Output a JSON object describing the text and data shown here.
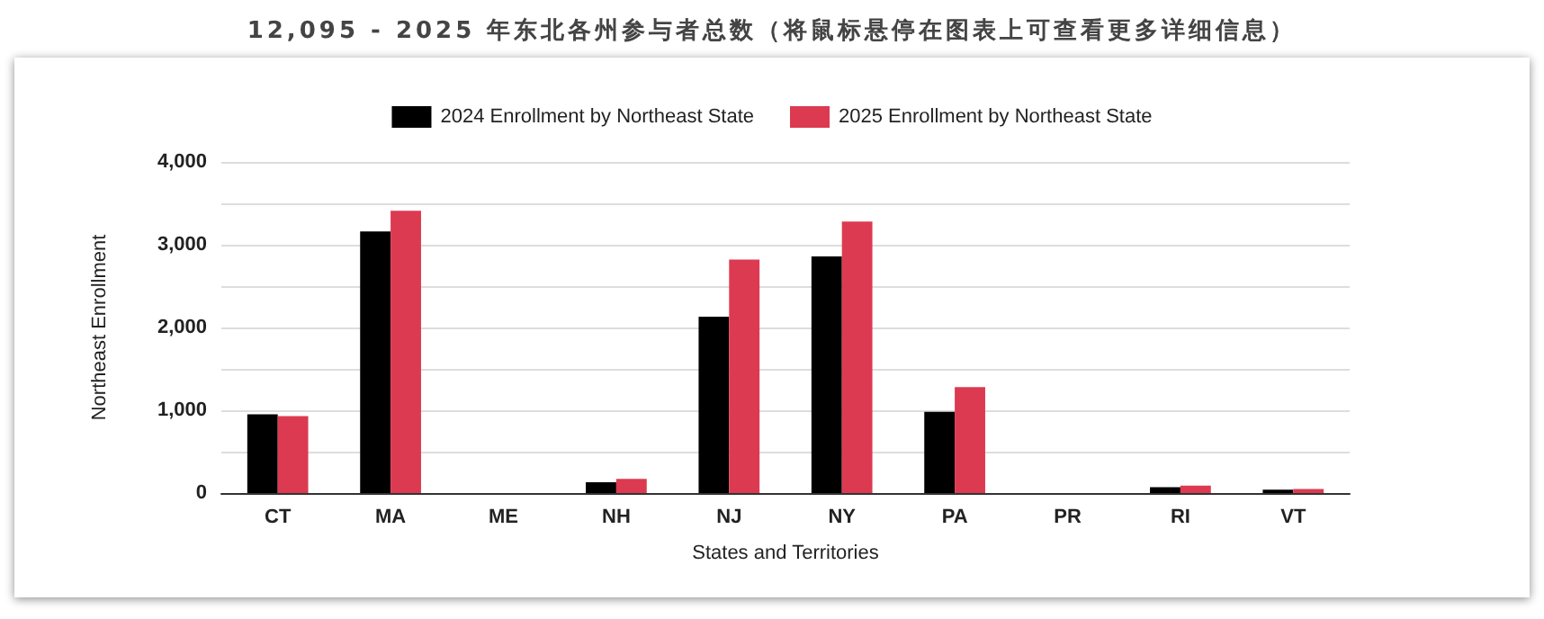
{
  "chart_data": {
    "type": "bar",
    "title": "12,095 - 2025 年东北各州参与者总数（将鼠标悬停在图表上可查看更多详细信息）",
    "xlabel": "States and Territories",
    "ylabel": "Northeast Enrollment",
    "categories": [
      "CT",
      "MA",
      "ME",
      "NH",
      "NJ",
      "NY",
      "PA",
      "PR",
      "RI",
      "VT"
    ],
    "series": [
      {
        "name": "2024 Enrollment by Northeast State",
        "color": "#000000",
        "values": [
          950,
          3160,
          null,
          130,
          2130,
          2860,
          980,
          null,
          70,
          40
        ]
      },
      {
        "name": "2025 Enrollment by Northeast State",
        "color": "#dc3a51",
        "values": [
          930,
          3410,
          null,
          170,
          2820,
          3280,
          1280,
          null,
          90,
          50
        ]
      }
    ],
    "ylim": [
      0,
      4000
    ],
    "yticks": [
      0,
      {
        "value": 500,
        "label": null
      },
      {
        "value": 1000,
        "label": "1,000"
      },
      {
        "value": 1500,
        "label": null
      },
      {
        "value": 2000,
        "label": "2,000"
      },
      {
        "value": 2500,
        "label": null
      },
      {
        "value": 3000,
        "label": "3,000"
      },
      {
        "value": 3500,
        "label": null
      },
      {
        "value": 4000,
        "label": "4,000"
      }
    ],
    "grid": "y",
    "legend": "top"
  }
}
